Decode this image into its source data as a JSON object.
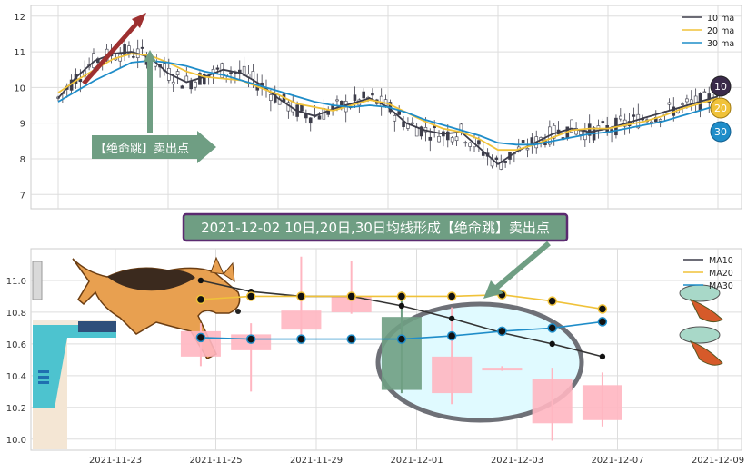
{
  "colors": {
    "ma10": "#3d3d4a",
    "ma20": "#f0c239",
    "ma30": "#1f8dc9",
    "candle_up": "#ffb6c1",
    "candle_down": "#6f9e83",
    "green_arrow": "#6f9e83",
    "red_arrow": "#9e3030",
    "title_box": "#6f9e83",
    "title_border": "#5b2a70",
    "ellipse_fill": "#e0faff",
    "ellipse_stroke": "#666666"
  },
  "top_chart": {
    "legend": [
      "10 ma",
      "20 ma",
      "30 ma"
    ],
    "annotation": "【绝命跳】卖出点",
    "badges": [
      "10",
      "20",
      "30"
    ]
  },
  "banner": {
    "text": "2021-12-02 10日,20日,30日均线形成【绝命跳】卖出点"
  },
  "chart_data": [
    {
      "type": "line",
      "panel": "top",
      "ylim": [
        6.6,
        12.3
      ],
      "yticks": [
        7,
        8,
        9,
        10,
        11,
        12
      ],
      "series": [
        {
          "name": "10 ma",
          "values": [
            9.7,
            10.3,
            10.75,
            10.95,
            11.0,
            10.85,
            10.4,
            10.15,
            10.3,
            10.5,
            10.4,
            10.1,
            9.7,
            9.35,
            9.2,
            9.4,
            9.55,
            9.7,
            9.45,
            9.0,
            8.8,
            8.7,
            8.75,
            8.3,
            7.85,
            8.2,
            8.45,
            8.7,
            8.85,
            8.75,
            8.85,
            9.0,
            9.15,
            9.3,
            9.45,
            9.6,
            9.75
          ]
        },
        {
          "name": "20 ma",
          "values": [
            9.85,
            10.2,
            10.5,
            10.8,
            10.95,
            10.9,
            10.7,
            10.45,
            10.3,
            10.25,
            10.2,
            10.0,
            9.8,
            9.55,
            9.45,
            9.35,
            9.5,
            9.65,
            9.55,
            9.3,
            9.05,
            8.85,
            8.75,
            8.55,
            8.25,
            8.25,
            8.4,
            8.6,
            8.8,
            8.85,
            8.85,
            8.95,
            9.05,
            9.2,
            9.4,
            9.55,
            9.7
          ]
        },
        {
          "name": "30 ma",
          "values": [
            9.6,
            9.9,
            10.2,
            10.45,
            10.7,
            10.75,
            10.7,
            10.6,
            10.45,
            10.35,
            10.2,
            10.05,
            9.9,
            9.75,
            9.6,
            9.5,
            9.45,
            9.5,
            9.45,
            9.3,
            9.1,
            8.95,
            8.8,
            8.65,
            8.45,
            8.4,
            8.4,
            8.5,
            8.6,
            8.7,
            8.75,
            8.85,
            8.95,
            9.05,
            9.2,
            9.35,
            9.5
          ]
        }
      ]
    },
    {
      "type": "candlestick",
      "panel": "bottom",
      "ylim": [
        9.93,
        11.2
      ],
      "yticks": [
        10.0,
        10.2,
        10.4,
        10.6,
        10.8,
        11.0
      ],
      "categories": [
        "2021-11-23",
        "2021-11-25",
        "2021-11-29",
        "2021-12-01",
        "2021-12-03",
        "2021-12-07",
        "2021-12-09"
      ],
      "candles": [
        {
          "x": 0.85,
          "open": 10.52,
          "close": 10.68,
          "high": 10.73,
          "low": 10.46
        },
        {
          "x": 1.35,
          "open": 10.56,
          "close": 10.66,
          "high": 10.73,
          "low": 10.3
        },
        {
          "x": 1.85,
          "open": 10.69,
          "close": 10.81,
          "high": 11.15,
          "low": 10.61
        },
        {
          "x": 2.35,
          "open": 10.8,
          "close": 10.9,
          "high": 11.12,
          "low": 10.79
        },
        {
          "x": 2.85,
          "open": 10.77,
          "close": 10.31,
          "high": 10.93,
          "low": 10.29
        },
        {
          "x": 3.35,
          "open": 10.29,
          "close": 10.52,
          "high": 10.83,
          "low": 10.22
        },
        {
          "x": 3.85,
          "open": 10.45,
          "close": 10.45,
          "high": 10.46,
          "low": 10.43
        },
        {
          "x": 4.35,
          "open": 10.1,
          "close": 10.38,
          "high": 10.45,
          "low": 9.99
        },
        {
          "x": 4.85,
          "open": 10.12,
          "close": 10.34,
          "high": 10.42,
          "low": 10.08
        }
      ],
      "series": [
        {
          "name": "MA10",
          "x": [
            0.85,
            1.35,
            1.85,
            2.35,
            2.85,
            3.35,
            3.85,
            4.35,
            4.85
          ],
          "values": [
            11.0,
            10.93,
            10.9,
            10.9,
            10.84,
            10.76,
            10.67,
            10.6,
            10.52
          ]
        },
        {
          "name": "MA20",
          "x": [
            0.85,
            1.35,
            1.85,
            2.35,
            2.85,
            3.35,
            3.85,
            4.35,
            4.85
          ],
          "values": [
            10.88,
            10.9,
            10.9,
            10.9,
            10.9,
            10.9,
            10.91,
            10.87,
            10.82
          ]
        },
        {
          "name": "MA30",
          "x": [
            0.85,
            1.35,
            1.85,
            2.35,
            2.85,
            3.35,
            3.85,
            4.35,
            4.85
          ],
          "values": [
            10.64,
            10.63,
            10.63,
            10.63,
            10.63,
            10.65,
            10.68,
            10.7,
            10.74
          ]
        }
      ]
    }
  ]
}
